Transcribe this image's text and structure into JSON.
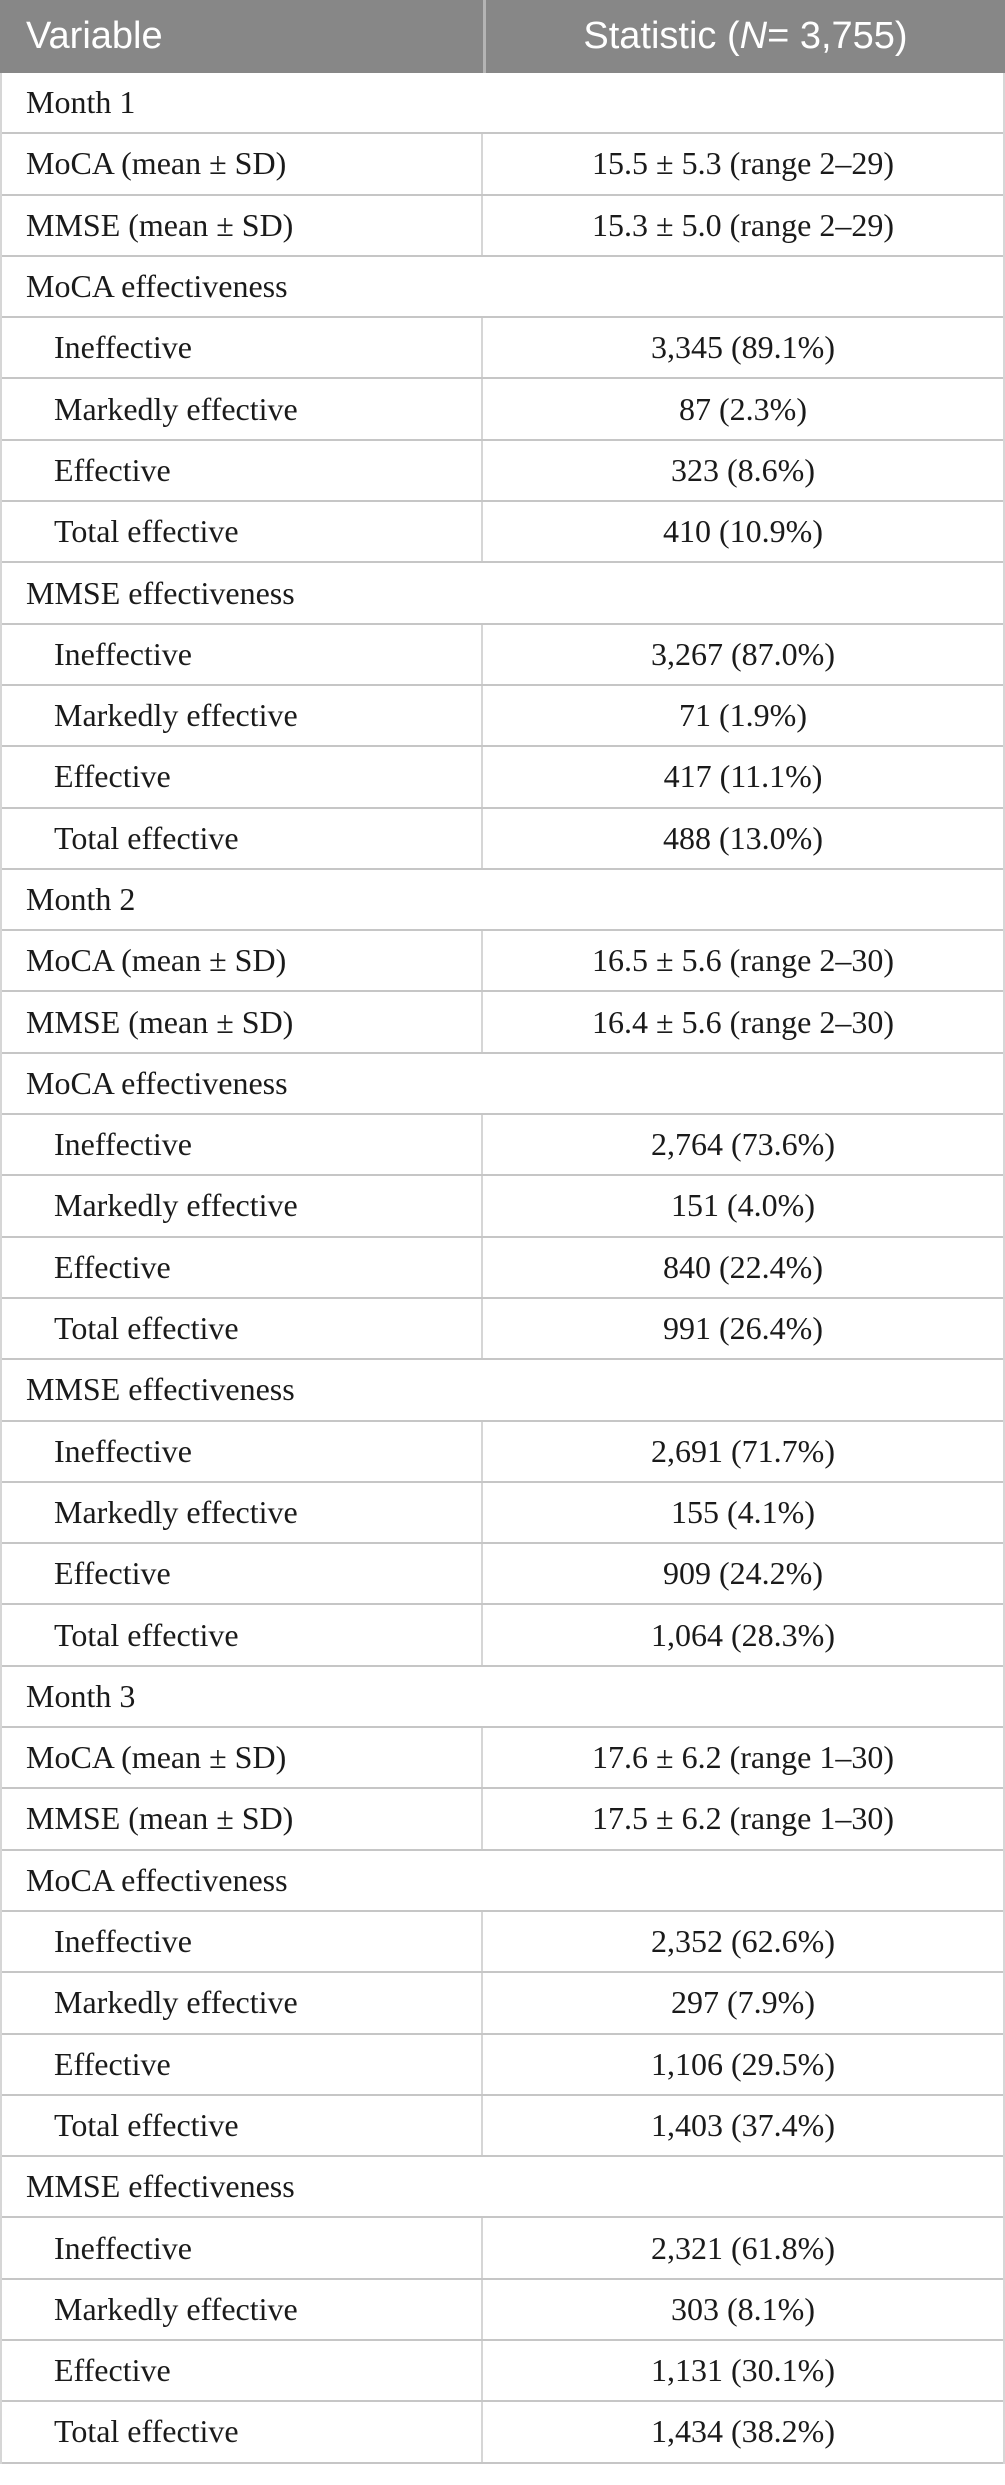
{
  "table": {
    "header": {
      "variable": "Variable",
      "statistic_prefix": "Statistic (",
      "statistic_n": "N",
      "statistic_suffix": " = 3,755)"
    },
    "rows": [
      {
        "type": "section",
        "indent": false,
        "label": "Month 1",
        "value": ""
      },
      {
        "type": "data",
        "indent": false,
        "label": "MoCA (mean ± SD)",
        "value": "15.5 ± 5.3 (range 2–29)"
      },
      {
        "type": "data",
        "indent": false,
        "label": "MMSE (mean ± SD)",
        "value": "15.3 ± 5.0 (range 2–29)"
      },
      {
        "type": "section",
        "indent": false,
        "label": "MoCA effectiveness",
        "value": ""
      },
      {
        "type": "data",
        "indent": true,
        "label": "Ineffective",
        "value": "3,345 (89.1%)"
      },
      {
        "type": "data",
        "indent": true,
        "label": "Markedly effective",
        "value": "87 (2.3%)"
      },
      {
        "type": "data",
        "indent": true,
        "label": "Effective",
        "value": "323 (8.6%)"
      },
      {
        "type": "data",
        "indent": true,
        "label": "Total effective",
        "value": "410 (10.9%)"
      },
      {
        "type": "section",
        "indent": false,
        "label": "MMSE effectiveness",
        "value": ""
      },
      {
        "type": "data",
        "indent": true,
        "label": "Ineffective",
        "value": "3,267 (87.0%)"
      },
      {
        "type": "data",
        "indent": true,
        "label": "Markedly effective",
        "value": "71 (1.9%)"
      },
      {
        "type": "data",
        "indent": true,
        "label": "Effective",
        "value": "417 (11.1%)"
      },
      {
        "type": "data",
        "indent": true,
        "label": "Total effective",
        "value": "488 (13.0%)"
      },
      {
        "type": "section",
        "indent": false,
        "label": "Month 2",
        "value": ""
      },
      {
        "type": "data",
        "indent": false,
        "label": "MoCA (mean ± SD)",
        "value": "16.5 ± 5.6 (range 2–30)"
      },
      {
        "type": "data",
        "indent": false,
        "label": "MMSE (mean ± SD)",
        "value": "16.4 ± 5.6 (range 2–30)"
      },
      {
        "type": "section",
        "indent": false,
        "label": "MoCA effectiveness",
        "value": ""
      },
      {
        "type": "data",
        "indent": true,
        "label": "Ineffective",
        "value": "2,764 (73.6%)"
      },
      {
        "type": "data",
        "indent": true,
        "label": "Markedly effective",
        "value": "151 (4.0%)"
      },
      {
        "type": "data",
        "indent": true,
        "label": "Effective",
        "value": "840 (22.4%)"
      },
      {
        "type": "data",
        "indent": true,
        "label": "Total effective",
        "value": "991 (26.4%)"
      },
      {
        "type": "section",
        "indent": false,
        "label": "MMSE effectiveness",
        "value": ""
      },
      {
        "type": "data",
        "indent": true,
        "label": "Ineffective",
        "value": "2,691 (71.7%)"
      },
      {
        "type": "data",
        "indent": true,
        "label": "Markedly effective",
        "value": "155 (4.1%)"
      },
      {
        "type": "data",
        "indent": true,
        "label": "Effective",
        "value": "909 (24.2%)"
      },
      {
        "type": "data",
        "indent": true,
        "label": "Total effective",
        "value": "1,064 (28.3%)"
      },
      {
        "type": "section",
        "indent": false,
        "label": "Month 3",
        "value": ""
      },
      {
        "type": "data",
        "indent": false,
        "label": "MoCA (mean ± SD)",
        "value": "17.6 ± 6.2 (range 1–30)"
      },
      {
        "type": "data",
        "indent": false,
        "label": "MMSE (mean ± SD)",
        "value": "17.5 ± 6.2 (range 1–30)"
      },
      {
        "type": "section",
        "indent": false,
        "label": "MoCA effectiveness",
        "value": ""
      },
      {
        "type": "data",
        "indent": true,
        "label": "Ineffective",
        "value": "2,352 (62.6%)"
      },
      {
        "type": "data",
        "indent": true,
        "label": "Markedly effective",
        "value": "297 (7.9%)"
      },
      {
        "type": "data",
        "indent": true,
        "label": "Effective",
        "value": "1,106 (29.5%)"
      },
      {
        "type": "data",
        "indent": true,
        "label": "Total effective",
        "value": "1,403 (37.4%)"
      },
      {
        "type": "section",
        "indent": false,
        "label": "MMSE effectiveness",
        "value": ""
      },
      {
        "type": "data",
        "indent": true,
        "label": "Ineffective",
        "value": "2,321 (61.8%)"
      },
      {
        "type": "data",
        "indent": true,
        "label": "Markedly effective",
        "value": "303 (8.1%)"
      },
      {
        "type": "data",
        "indent": true,
        "label": "Effective",
        "value": "1,131 (30.1%)"
      },
      {
        "type": "data",
        "indent": true,
        "label": "Total effective",
        "value": "1,434 (38.2%)"
      }
    ],
    "colors": {
      "header_bg": "#878787",
      "header_text": "#ffffff",
      "body_text": "#1a1a1a",
      "grid_line": "#c6c6c6",
      "column_divider": "#d6d6d6"
    }
  }
}
